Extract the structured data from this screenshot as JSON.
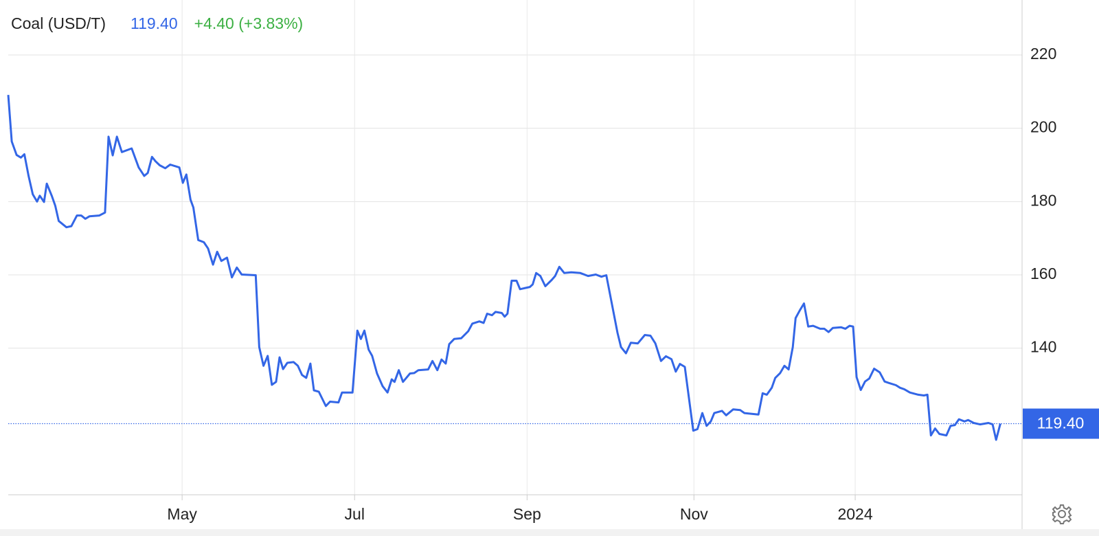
{
  "chart_data": {
    "type": "line",
    "title": "Coal (USD/T)",
    "price": "119.40",
    "change": "+4.40 (+3.83%)",
    "color": "#3366e6",
    "grid": true,
    "x": [
      0,
      1.25,
      3,
      4.5,
      5.75,
      7.25,
      8.75,
      10.25,
      11.25,
      12.75,
      13.75,
      15.5,
      16.75,
      18,
      20.75,
      22.5,
      24.5,
      26,
      27.5,
      29,
      32.5,
      34.5,
      35.75,
      37.25,
      38.75,
      40.5,
      44,
      46.5,
      48.5,
      49.75,
      51.25,
      52.5,
      54,
      56,
      57.75,
      61,
      62.25,
      63.5,
      65,
      66,
      67.75,
      69.75,
      71.25,
      73,
      74.5,
      76,
      78,
      79.75,
      81.5,
      83.25,
      88.25,
      89.5,
      91,
      92.5,
      94,
      95.5,
      96.75,
      98,
      99.5,
      101.75,
      103.25,
      104.75,
      106.25,
      107.75,
      109,
      110.75,
      113.25,
      114.75,
      117.75,
      119,
      122.75,
      124.5,
      125.75,
      127,
      128.5,
      129.75,
      131.5,
      133.5,
      135.25,
      136.75,
      137.75,
      139.25,
      140.75,
      143.25,
      144.75,
      146.25,
      149.75,
      151.25,
      153,
      154.5,
      156,
      157.25,
      159,
      161.5,
      164,
      165.5,
      168,
      169.5,
      170.75,
      172.5,
      173.75,
      176,
      177,
      178,
      179.5,
      181.25,
      182.5,
      186,
      187,
      188.25,
      189.75,
      191.5,
      193.75,
      195,
      196.5,
      198.25,
      200.75,
      204,
      206.75,
      209.5,
      211.5,
      213.25,
      217.25,
      218.5,
      220.25,
      222,
      224.5,
      227,
      229,
      230.75,
      232.75,
      234.5,
      236.5,
      238,
      239.5,
      241.25,
      244.25,
      245.75,
      247.5,
      249,
      250.5,
      251.75,
      254.5,
      256,
      258.5,
      261,
      262.5,
      267.5,
      269,
      270.5,
      272.25,
      273.5,
      275.25,
      276.75,
      278.25,
      279.75,
      280.75,
      282.25,
      283.75,
      285.25,
      287,
      289.5,
      291,
      292.5,
      294,
      297,
      298.5,
      300,
      301.25,
      302.5,
      304,
      305.5,
      307,
      308.75,
      310.75,
      312.5,
      314,
      316.5,
      318,
      319.5,
      321.5,
      324.5,
      326.5,
      327.75,
      329,
      330.5,
      332,
      334.5,
      336,
      337.5,
      339,
      341,
      342.25,
      344.25,
      346.5,
      349.5,
      351,
      352.25,
      353.75
    ],
    "values": [
      209.1,
      196.4,
      192.7,
      192,
      192.9,
      187,
      182,
      180,
      181.6,
      179.9,
      184.9,
      181.6,
      178.9,
      174.7,
      173,
      173.3,
      176.2,
      176.2,
      175.3,
      176,
      176.2,
      177,
      197.7,
      192.6,
      197.7,
      193.5,
      194.5,
      189.3,
      187,
      187.8,
      192.2,
      191,
      189.9,
      189.1,
      190.1,
      189.3,
      185.1,
      187.4,
      180.5,
      178.4,
      169.5,
      168.9,
      167.2,
      162.8,
      166.3,
      163.8,
      164.7,
      159.3,
      162,
      160.1,
      159.9,
      140.3,
      135.2,
      137.9,
      130,
      130.8,
      137.5,
      134.3,
      136,
      136.2,
      135.2,
      132.7,
      131.9,
      135.8,
      128.5,
      128.1,
      124.2,
      125.4,
      125.2,
      127.9,
      127.9,
      144.8,
      142.5,
      144.8,
      139.6,
      137.9,
      133.1,
      129.6,
      127.9,
      131.5,
      130.8,
      134,
      130.8,
      133.1,
      133.2,
      134,
      134.2,
      136.5,
      134,
      136.9,
      135.8,
      141.1,
      142.5,
      142.7,
      144.6,
      146.7,
      147.3,
      146.9,
      149.4,
      149,
      149.9,
      149.6,
      148.6,
      149.4,
      158.4,
      158.4,
      156.1,
      156.7,
      157.4,
      160.5,
      159.7,
      156.9,
      158.6,
      159.7,
      162.2,
      160.5,
      160.7,
      160.5,
      159.7,
      160.1,
      159.5,
      159.9,
      144.2,
      140.3,
      138.6,
      141.5,
      141.3,
      143.6,
      143.4,
      141.3,
      136.5,
      137.8,
      137,
      133.6,
      135.7,
      134.9,
      117.5,
      117.9,
      122.3,
      118.8,
      120,
      122.3,
      122.9,
      121.7,
      123.3,
      123.1,
      122.3,
      121.9,
      127.7,
      127.3,
      129.2,
      131.9,
      133.2,
      135.2,
      134.2,
      140.3,
      148.2,
      150.3,
      152.2,
      145.9,
      146.1,
      145.3,
      145.3,
      144.4,
      145.5,
      145.7,
      145.3,
      146.1,
      145.9,
      132.1,
      128.6,
      130.9,
      131.7,
      134.4,
      133.4,
      130.9,
      130.5,
      129.9,
      129.2,
      128.8,
      127.9,
      127.3,
      127.1,
      127.3,
      116.2,
      118.1,
      116.6,
      116.2,
      118.8,
      119,
      120.6,
      120,
      120.4,
      119.6,
      119.2,
      119.6,
      119.2,
      115,
      119.4
    ],
    "xlim": [
      0,
      361.5
    ],
    "xticks": [
      {
        "value": 62,
        "label": "May"
      },
      {
        "value": 123.5,
        "label": "Jul"
      },
      {
        "value": 185,
        "label": "Sep"
      },
      {
        "value": 244.5,
        "label": "Nov"
      },
      {
        "value": 302,
        "label": "2024"
      }
    ],
    "ylim": [
      100,
      235
    ],
    "yticks": [
      140,
      160,
      180,
      200,
      220
    ]
  }
}
